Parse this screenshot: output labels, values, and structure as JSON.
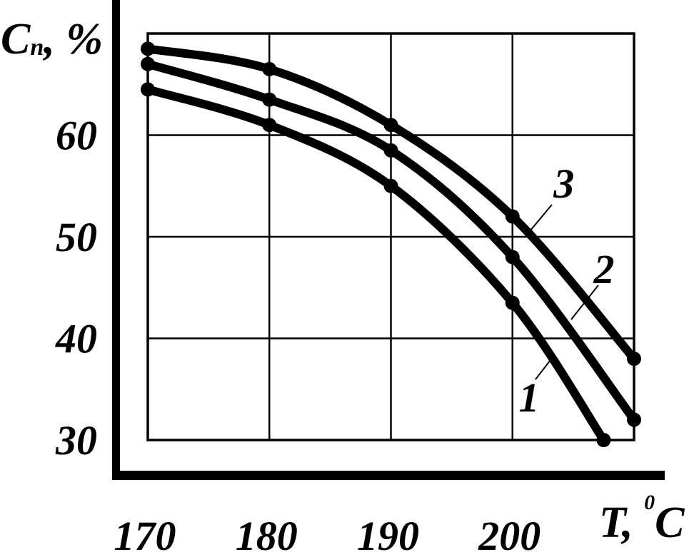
{
  "figure": {
    "background": "#ffffff",
    "ink": "#000000"
  },
  "y_axis": {
    "title": {
      "main": "C",
      "sub": "n",
      "rest": ", %"
    },
    "title_flat": "Cn, %"
  },
  "x_axis": {
    "title": {
      "main": "T, ",
      "sup": "0",
      "rest": "C"
    },
    "title_flat": "T, 0C"
  },
  "chart_data": {
    "type": "line",
    "title": "",
    "xlabel": "T, °C",
    "ylabel": "Cn, %",
    "x_range": [
      170,
      210
    ],
    "y_range": [
      30,
      70
    ],
    "grid_step": 10,
    "grid": true,
    "x_ticks": [
      170,
      180,
      190,
      200
    ],
    "y_ticks": [
      60,
      50,
      40,
      30
    ],
    "series": [
      {
        "name": "1",
        "points": [
          [
            170,
            64.5
          ],
          [
            180,
            61
          ],
          [
            190,
            55
          ],
          [
            200,
            43.5
          ],
          [
            207.5,
            30
          ]
        ]
      },
      {
        "name": "2",
        "points": [
          [
            170,
            67
          ],
          [
            180,
            63.5
          ],
          [
            190,
            58.5
          ],
          [
            200,
            48
          ],
          [
            210,
            32
          ]
        ]
      },
      {
        "name": "3",
        "points": [
          [
            170,
            68.5
          ],
          [
            180,
            66.5
          ],
          [
            190,
            61
          ],
          [
            200,
            52
          ],
          [
            210,
            38
          ]
        ]
      }
    ],
    "annotations": [
      {
        "text": "1",
        "x": 201.36,
        "y": 34.2,
        "leader": {
          "x1": 201.89,
          "y1": 35.96,
          "x2": 203.48,
          "y2": 38.42
        }
      },
      {
        "text": "2",
        "x": 207.53,
        "y": 46.84,
        "leader": {
          "x1": 207.06,
          "y1": 45.23,
          "x2": 204.83,
          "y2": 41.86
        }
      },
      {
        "text": "3",
        "x": 204.24,
        "y": 55.26,
        "leader": {
          "x1": 203.24,
          "y1": 53.16,
          "x2": 201.48,
          "y2": 50.63
        }
      }
    ]
  }
}
